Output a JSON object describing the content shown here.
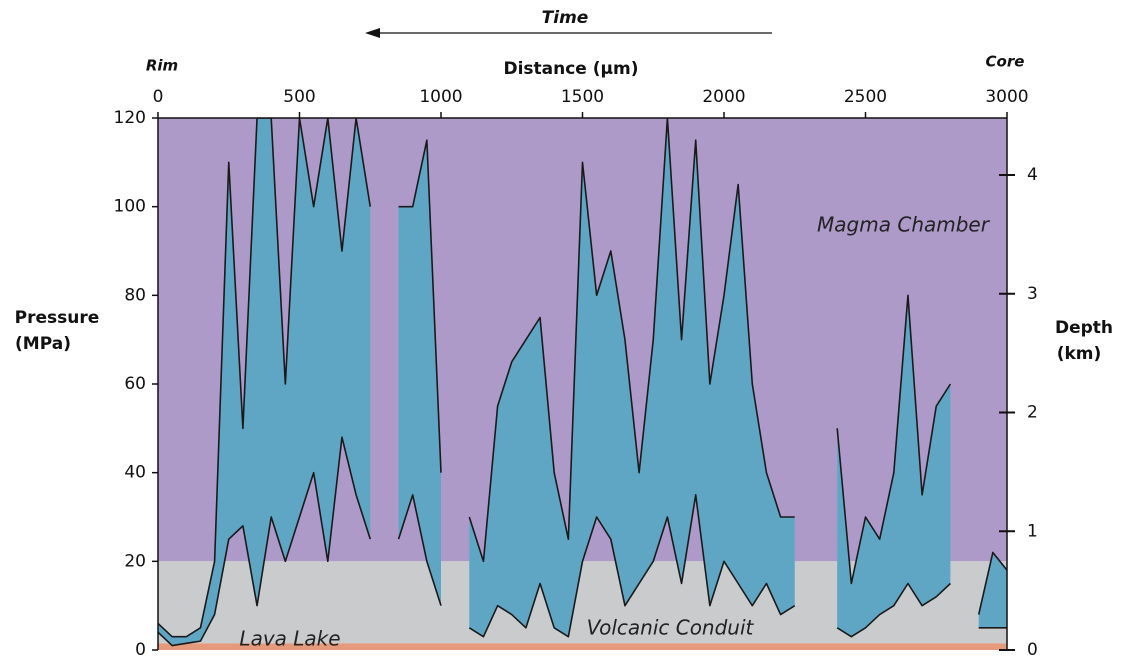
{
  "chart_data": {
    "type": "band",
    "time_label": "Time",
    "x_label": "Distance (µm)",
    "rim_label": "Rim",
    "core_label": "Core",
    "y_label": [
      "Pressure",
      "(MPa)"
    ],
    "y2_label": [
      "Depth",
      "(km)"
    ],
    "xlim": [
      0,
      3000
    ],
    "xticks": [
      0,
      500,
      1000,
      1500,
      2000,
      2500,
      3000
    ],
    "ylim": [
      0,
      120
    ],
    "yticks": [
      0,
      20,
      40,
      60,
      80,
      100,
      120
    ],
    "y2lim": [
      0,
      4.48
    ],
    "y2ticks": [
      0,
      1,
      2,
      3,
      4
    ],
    "regions": [
      {
        "label": "Magma Chamber",
        "range": [
          20,
          120
        ],
        "color": "#ae9ac8"
      },
      {
        "label": "Volcanic Conduit",
        "range": [
          1.5,
          20
        ],
        "color": "#cacbcd"
      },
      {
        "label": "Lava Lake",
        "range": [
          0,
          1.5
        ],
        "color": "#e59a7c"
      }
    ],
    "fill_color": "#5fa6c5",
    "x": [
      0,
      50,
      100,
      150,
      200,
      250,
      300,
      350,
      400,
      450,
      500,
      550,
      600,
      650,
      700,
      750,
      800,
      850,
      900,
      950,
      1000,
      1050,
      1100,
      1150,
      1200,
      1250,
      1300,
      1350,
      1400,
      1450,
      1500,
      1550,
      1600,
      1650,
      1700,
      1750,
      1800,
      1850,
      1900,
      1950,
      2000,
      2050,
      2100,
      2150,
      2200,
      2250,
      2300,
      2350,
      2400,
      2450,
      2500,
      2550,
      2600,
      2650,
      2700,
      2750,
      2800,
      2850,
      2900,
      2950,
      3000
    ],
    "series": [
      {
        "color": "#1a1a1a",
        "values": [
          6,
          3,
          3,
          5,
          20,
          110,
          50,
          120,
          120,
          60,
          120,
          100,
          120,
          90,
          120,
          100,
          null,
          100,
          100,
          115,
          40,
          null,
          30,
          20,
          55,
          65,
          70,
          75,
          40,
          25,
          110,
          80,
          90,
          70,
          40,
          70,
          120,
          70,
          115,
          60,
          80,
          105,
          60,
          40,
          30,
          30,
          null,
          null,
          50,
          15,
          30,
          25,
          40,
          80,
          35,
          55,
          60,
          null,
          8,
          22,
          18
        ]
      },
      {
        "color": "#1a1a1a",
        "values": [
          4,
          1,
          1.5,
          2,
          8,
          25,
          28,
          10,
          30,
          20,
          30,
          40,
          20,
          48,
          35,
          25,
          null,
          25,
          35,
          20,
          10,
          null,
          5,
          3,
          10,
          8,
          5,
          15,
          5,
          3,
          20,
          30,
          25,
          10,
          15,
          20,
          30,
          15,
          35,
          10,
          20,
          15,
          10,
          15,
          8,
          10,
          null,
          null,
          5,
          3,
          5,
          8,
          10,
          15,
          10,
          12,
          15,
          null,
          5,
          5,
          5
        ]
      }
    ]
  }
}
